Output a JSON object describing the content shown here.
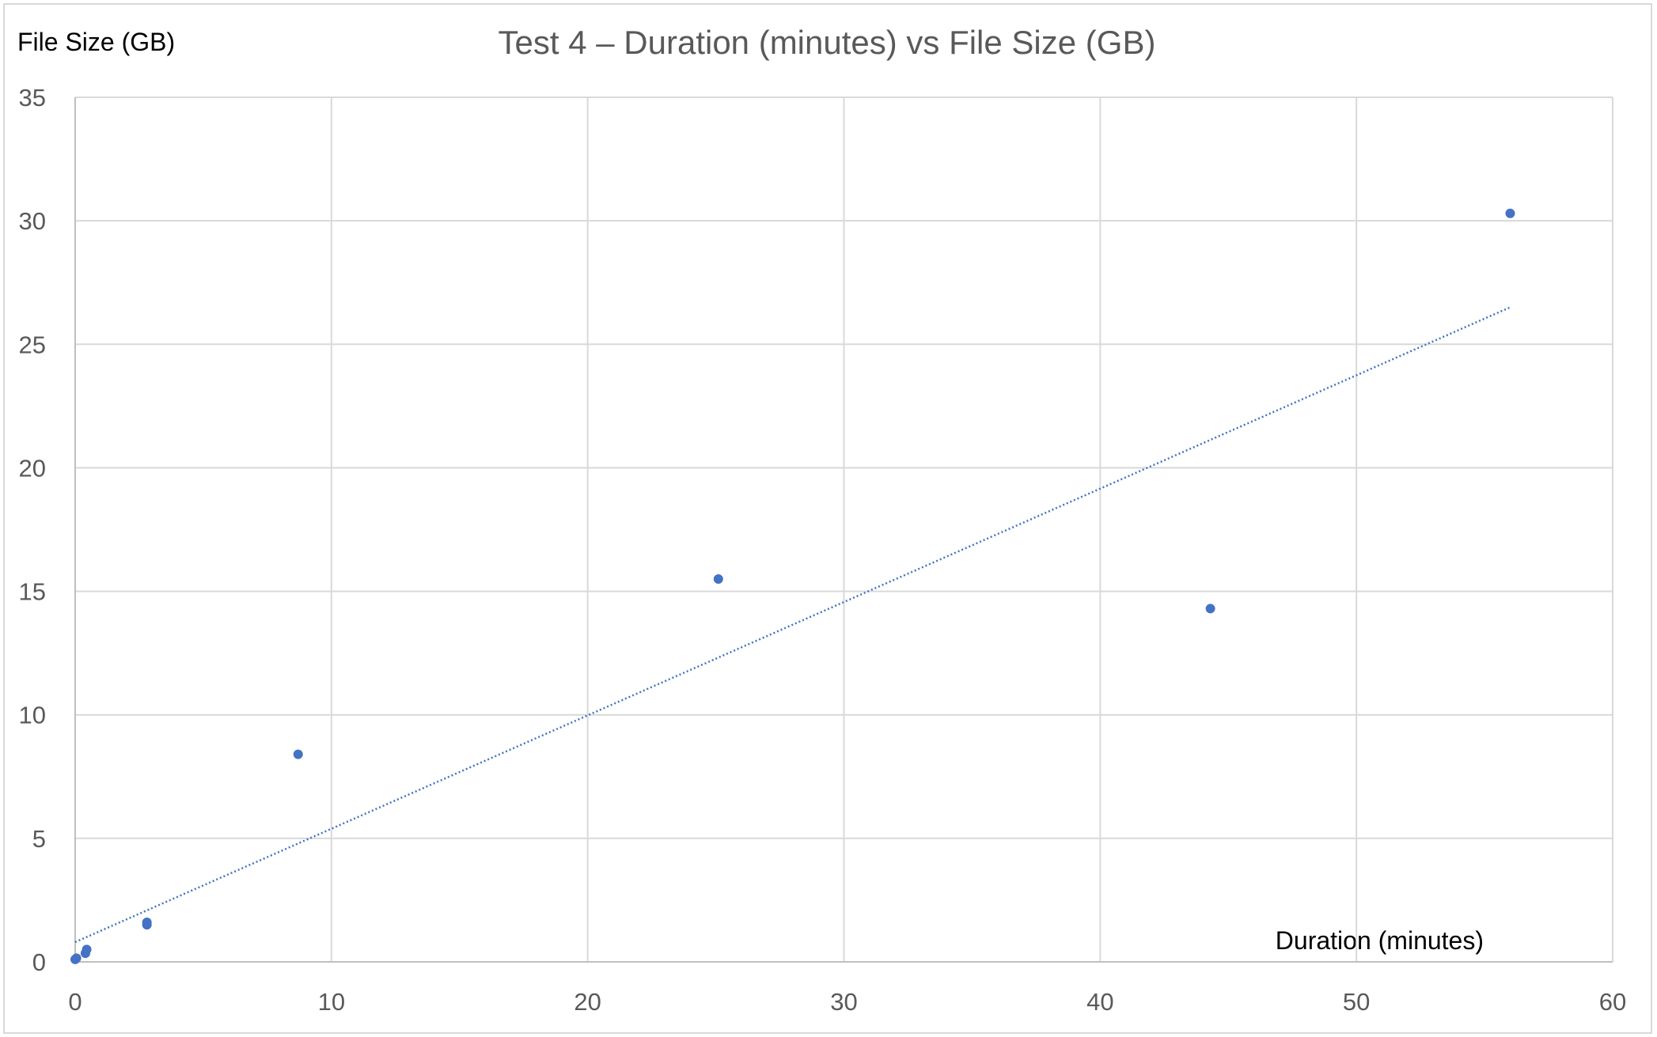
{
  "chart_data": {
    "type": "scatter",
    "title": "Test 4 – Duration (minutes) vs File Size (GB)",
    "xlabel": "Duration (minutes)",
    "ylabel": "File Size (GB)",
    "xlim": [
      0,
      60
    ],
    "ylim": [
      0,
      35
    ],
    "xticks": [
      0,
      10,
      20,
      30,
      40,
      50,
      60
    ],
    "yticks": [
      0,
      5,
      10,
      15,
      20,
      25,
      30,
      35
    ],
    "grid": true,
    "legend": "none",
    "series": [
      {
        "color": "#4472C4",
        "points": [
          {
            "x": 0.0,
            "y": 0.1
          },
          {
            "x": 0.05,
            "y": 0.15
          },
          {
            "x": 0.4,
            "y": 0.35
          },
          {
            "x": 0.45,
            "y": 0.5
          },
          {
            "x": 2.8,
            "y": 1.5
          },
          {
            "x": 2.8,
            "y": 1.6
          },
          {
            "x": 8.7,
            "y": 8.4
          },
          {
            "x": 25.1,
            "y": 15.5
          },
          {
            "x": 44.3,
            "y": 14.3
          },
          {
            "x": 56.0,
            "y": 30.3
          }
        ]
      }
    ],
    "trendline": {
      "type": "linear",
      "style": "dotted",
      "color": "#4472C4",
      "x": [
        0,
        56.0
      ],
      "y": [
        0.8,
        26.5
      ]
    }
  }
}
